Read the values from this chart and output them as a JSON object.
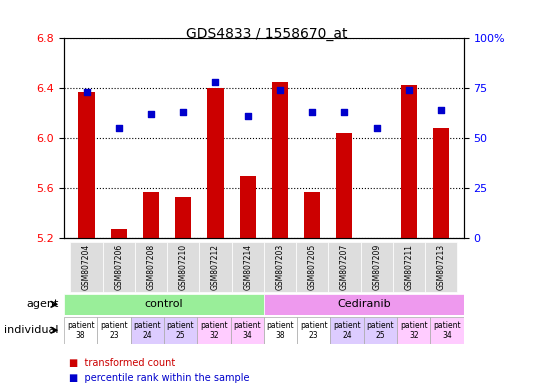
{
  "title": "GDS4833 / 1558670_at",
  "samples": [
    "GSM807204",
    "GSM807206",
    "GSM807208",
    "GSM807210",
    "GSM807212",
    "GSM807214",
    "GSM807203",
    "GSM807205",
    "GSM807207",
    "GSM807209",
    "GSM807211",
    "GSM807213"
  ],
  "bar_values": [
    6.37,
    5.27,
    5.57,
    5.53,
    6.4,
    5.7,
    6.45,
    5.57,
    6.04,
    5.2,
    6.43,
    6.08
  ],
  "percentile_values": [
    73,
    55,
    62,
    63,
    78,
    61,
    74,
    63,
    63,
    55,
    74,
    64
  ],
  "ylim_left": [
    5.2,
    6.8
  ],
  "ylim_right": [
    0,
    100
  ],
  "yticks_left": [
    5.2,
    5.6,
    6.0,
    6.4,
    6.8
  ],
  "yticks_right": [
    0,
    25,
    50,
    75,
    100
  ],
  "bar_color": "#cc0000",
  "dot_color": "#0000cc",
  "bar_bottom": 5.2,
  "agent_control_indices": [
    0,
    1,
    2,
    3,
    4,
    5
  ],
  "agent_cediranib_indices": [
    6,
    7,
    8,
    9,
    10,
    11
  ],
  "agent_control_label": "control",
  "agent_cediranib_label": "Cediranib",
  "individual_labels": [
    "patient\n38",
    "patient\n23",
    "patient\n24",
    "patient\n25",
    "patient\n32",
    "patient\n34",
    "patient\n38",
    "patient\n23",
    "patient\n24",
    "patient\n25",
    "patient\n32",
    "patient\n34"
  ],
  "control_bg": "#99ff99",
  "cediranib_bg": "#ff66ff",
  "individual_bg_control": [
    "#ffffff",
    "#ffffff",
    "#ddddff",
    "#ddddff",
    "#ffccff",
    "#ffccff"
  ],
  "individual_bg_cediranib": [
    "#ffffff",
    "#ffffff",
    "#ddddff",
    "#ddddff",
    "#ffccff",
    "#ffccff"
  ],
  "legend_red_label": "transformed count",
  "legend_blue_label": "percentile rank within the sample",
  "agent_row_color_control": "#99ee99",
  "agent_row_color_cediranib": "#ee99ee",
  "xlabel_color": "#666666",
  "label_fontsize": 7,
  "tick_fontsize": 8
}
